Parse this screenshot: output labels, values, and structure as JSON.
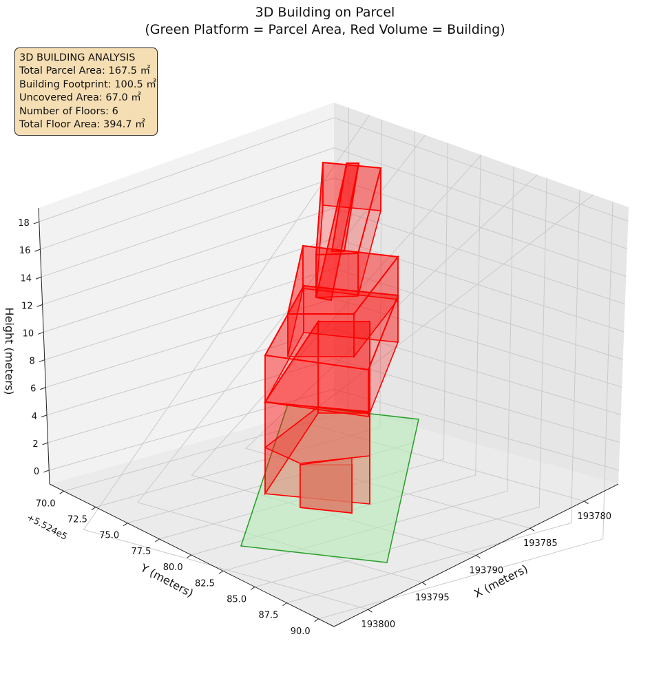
{
  "title_line1": "3D Building on Parcel",
  "title_line2": "(Green Platform = Parcel Area, Red Volume = Building)",
  "info_box": {
    "heading": "3D BUILDING ANALYSIS",
    "line1": "Total Parcel Area: 167.5 ㎡",
    "line2": "Building Footprint: 100.5 ㎡",
    "line3": "Uncovered Area: 67.0 ㎡",
    "line4": "Number of Floors: 6",
    "line5": "Total Floor Area: 394.7 ㎡"
  },
  "chart_data": {
    "type": "3d-polygons",
    "xlabel": "X (meters)",
    "ylabel": "Y (meters)",
    "zlabel": "Height (meters)",
    "y_offset_label": "+5.524e5",
    "x_ticks": [
      "193780",
      "193785",
      "193790",
      "193795",
      "193800"
    ],
    "y_ticks": [
      "70.0",
      "72.5",
      "75.0",
      "77.5",
      "80.0",
      "82.5",
      "85.0",
      "87.5",
      "90.0"
    ],
    "z_ticks": [
      "0",
      "2",
      "4",
      "6",
      "8",
      "10",
      "12",
      "14",
      "16",
      "18"
    ],
    "series": [
      {
        "name": "Parcel Area",
        "color": "#2ca02c",
        "fill": "#b8ebb8"
      },
      {
        "name": "Building",
        "color": "#ff0000",
        "fill": "#ff0000"
      }
    ],
    "grid": true
  }
}
